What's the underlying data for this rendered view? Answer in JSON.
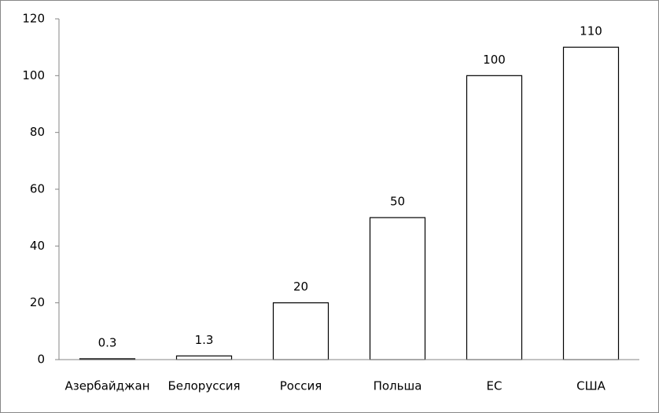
{
  "chart_data": {
    "type": "bar",
    "categories": [
      "Азербайджан",
      "Белоруссия",
      "Россия",
      "Польша",
      "ЕС",
      "США"
    ],
    "values": [
      0.3,
      1.3,
      20,
      50,
      100,
      110
    ],
    "color": "#ffffff",
    "ylim": [
      0,
      120
    ],
    "yticks": [
      0,
      20,
      40,
      60,
      80,
      100,
      120
    ],
    "grid": false
  }
}
